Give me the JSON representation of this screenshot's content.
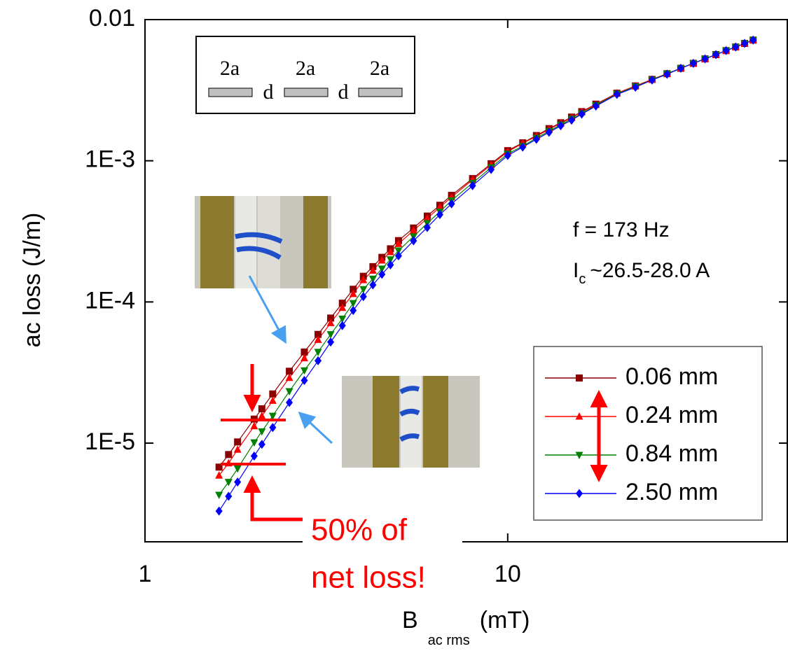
{
  "chart_data": {
    "type": "line",
    "x_label": {
      "symbol": "B",
      "subscript": "ac rms",
      "unit": "(mT)"
    },
    "y_label": "ac loss  (J/m)",
    "x_scale": "log",
    "y_scale": "log",
    "xlim": [
      1,
      59
    ],
    "ylim": [
      2e-06,
      0.01
    ],
    "xticks": [
      1,
      10
    ],
    "yticks": [
      {
        "value": 1e-05,
        "label": "1E-5"
      },
      {
        "value": 0.0001,
        "label": "1E-4"
      },
      {
        "value": 0.001,
        "label": "1E-3"
      },
      0.01
    ],
    "legend": "lower right",
    "x": [
      1.6,
      1.7,
      1.8,
      2.0,
      2.1,
      2.25,
      2.5,
      2.75,
      3.0,
      3.25,
      3.5,
      3.75,
      4.0,
      4.25,
      4.5,
      4.75,
      5.0,
      5.5,
      6.0,
      6.5,
      7.0,
      8.0,
      9.0,
      10,
      11,
      12,
      13,
      14,
      15,
      16,
      17.5,
      20,
      22.5,
      25,
      27.5,
      30,
      32.5,
      35,
      37.5,
      40,
      42.5,
      45,
      47.5
    ],
    "series": [
      {
        "name": "0.06 mm",
        "color": "#8b0000",
        "marker": "square",
        "values": [
          6.76e-06,
          8.3e-06,
          1.02e-05,
          1.48e-05,
          1.75e-05,
          2.23e-05,
          3.23e-05,
          4.42e-05,
          5.89e-05,
          7.69e-05,
          9.8e-05,
          0.000123,
          0.000152,
          0.000178,
          0.000207,
          0.000238,
          0.000272,
          0.000334,
          0.000406,
          0.000484,
          0.000569,
          0.000748,
          0.000953,
          0.00118,
          0.00134,
          0.00151,
          0.00169,
          0.00186,
          0.00204,
          0.00223,
          0.00252,
          0.00301,
          0.00339,
          0.00377,
          0.00414,
          0.00452,
          0.0049,
          0.00527,
          0.00565,
          0.00603,
          0.0064,
          0.00678,
          0.00716
        ]
      },
      {
        "name": "0.24 mm",
        "color": "#ff0000",
        "marker": "triangle-up",
        "values": [
          5.9e-06,
          7.2e-06,
          9e-06,
          1.32e-05,
          1.56e-05,
          2e-05,
          2.9e-05,
          4e-05,
          5.4e-05,
          7.1e-05,
          9.1e-05,
          0.000114,
          0.000143,
          0.000167,
          0.000197,
          0.000226,
          0.000258,
          0.000321,
          0.00039,
          0.000469,
          0.000552,
          0.000733,
          0.000934,
          0.00116,
          0.00133,
          0.00149,
          0.00167,
          0.00184,
          0.00202,
          0.00221,
          0.00249,
          0.00301,
          0.00339,
          0.00377,
          0.00414,
          0.00452,
          0.0049,
          0.00527,
          0.00565,
          0.00603,
          0.0064,
          0.00678,
          0.00716
        ]
      },
      {
        "name": "0.84 mm",
        "color": "#008000",
        "marker": "triangle-down",
        "values": [
          4.3e-06,
          5.3e-06,
          6.6e-06,
          1.01e-05,
          1.21e-05,
          1.56e-05,
          2.33e-05,
          3.27e-05,
          4.42e-05,
          5.9e-05,
          7.6e-05,
          9.8e-05,
          0.000123,
          0.000146,
          0.000172,
          0.0002,
          0.000231,
          0.000291,
          0.000361,
          0.000436,
          0.000523,
          0.000696,
          0.000896,
          0.00112,
          0.00127,
          0.00145,
          0.00162,
          0.0018,
          0.00198,
          0.00216,
          0.00247,
          0.00298,
          0.00336,
          0.00374,
          0.00414,
          0.00452,
          0.0049,
          0.00527,
          0.00565,
          0.00603,
          0.0064,
          0.00678,
          0.00716
        ]
      },
      {
        "name": "2.50 mm",
        "color": "#0000ff",
        "marker": "diamond",
        "values": [
          3.3e-06,
          4.2e-06,
          5.3e-06,
          8.1e-06,
          9.8e-06,
          1.29e-05,
          1.94e-05,
          2.78e-05,
          3.83e-05,
          5.2e-05,
          6.8e-05,
          8.7e-05,
          0.000109,
          0.000132,
          0.000157,
          0.000183,
          0.000212,
          0.000271,
          0.000337,
          0.000416,
          0.000495,
          0.000666,
          0.000867,
          0.00109,
          0.00125,
          0.00142,
          0.00159,
          0.00177,
          0.00194,
          0.00214,
          0.00244,
          0.00295,
          0.00332,
          0.00373,
          0.0041,
          0.00452,
          0.0049,
          0.00527,
          0.00565,
          0.00603,
          0.0064,
          0.00678,
          0.00716
        ]
      }
    ],
    "annotations": {
      "frequency": "f = 173 Hz",
      "critical_current": {
        "symbol": "I",
        "subscript": "c",
        "text": "~26.5-28.0 A"
      },
      "note": [
        "50% of",
        "net loss!"
      ]
    },
    "schematic": {
      "width_labels": [
        "2a",
        "2a",
        "2a"
      ],
      "gap_labels": [
        "d",
        "d"
      ]
    }
  }
}
